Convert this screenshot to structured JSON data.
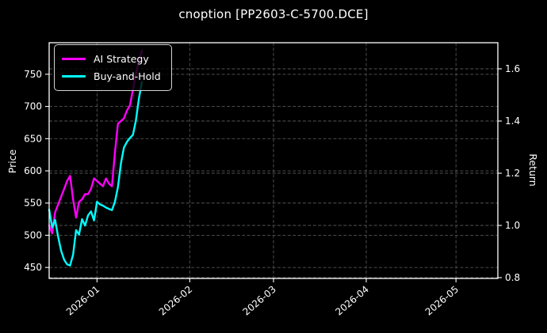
{
  "title": "cnoption [PP2603-C-5700.DCE]",
  "colors": {
    "background": "#000000",
    "text": "#ffffff",
    "spine": "#ffffff",
    "grid": "#545454",
    "ai_strategy": "#ff00ff",
    "buy_and_hold": "#00ffff"
  },
  "chart_data": {
    "type": "line",
    "title": "cnoption [PP2603-C-5700.DCE]",
    "grid": true,
    "legend": {
      "position": "upper-left",
      "entries": [
        {
          "label": "AI Strategy",
          "color": "#ff00ff"
        },
        {
          "label": "Buy-and-Hold",
          "color": "#00ffff"
        }
      ]
    },
    "x_axis": {
      "label": "",
      "range": [
        "2025-12-16",
        "2026-05-15"
      ],
      "tick_rotation_deg": -40,
      "ticks": [
        {
          "label": "2026-01",
          "date": "2026-01-01"
        },
        {
          "label": "2026-02",
          "date": "2026-02-01"
        },
        {
          "label": "2026-03",
          "date": "2026-03-01"
        },
        {
          "label": "2026-04",
          "date": "2026-04-01"
        },
        {
          "label": "2026-05",
          "date": "2026-05-01"
        }
      ]
    },
    "y_left": {
      "label": "Price",
      "range": [
        433,
        799
      ],
      "ticks": [
        {
          "label": "450",
          "value": 450
        },
        {
          "label": "500",
          "value": 500
        },
        {
          "label": "550",
          "value": 550
        },
        {
          "label": "600",
          "value": 600
        },
        {
          "label": "650",
          "value": 650
        },
        {
          "label": "700",
          "value": 700
        },
        {
          "label": "750",
          "value": 750
        }
      ]
    },
    "y_right": {
      "label": "Return",
      "range": [
        0.797,
        1.7
      ],
      "ticks": [
        {
          "label": "0.8",
          "value": 0.8
        },
        {
          "label": "1.0",
          "value": 1.0
        },
        {
          "label": "1.2",
          "value": 1.2
        },
        {
          "label": "1.4",
          "value": 1.4
        },
        {
          "label": "1.6",
          "value": 1.6
        }
      ]
    },
    "dates": [
      "2025-12-16",
      "2025-12-17",
      "2025-12-18",
      "2025-12-19",
      "2025-12-20",
      "2025-12-21",
      "2025-12-22",
      "2025-12-23",
      "2025-12-24",
      "2025-12-25",
      "2025-12-26",
      "2025-12-27",
      "2025-12-28",
      "2025-12-29",
      "2025-12-30",
      "2025-12-31",
      "2026-01-01",
      "2026-01-02",
      "2026-01-03",
      "2026-01-04",
      "2026-01-05",
      "2026-01-06",
      "2026-01-07",
      "2026-01-08",
      "2026-01-09",
      "2026-01-10",
      "2026-01-11",
      "2026-01-12",
      "2026-01-13",
      "2026-01-14",
      "2026-01-15",
      "2026-01-16"
    ],
    "series": [
      {
        "name": "AI Strategy",
        "axis": "right",
        "color": "#ff00ff",
        "values": [
          1.0,
          0.97,
          1.05,
          1.08,
          1.11,
          1.14,
          1.17,
          1.19,
          1.1,
          1.03,
          1.09,
          1.1,
          1.12,
          1.12,
          1.14,
          1.18,
          1.17,
          1.16,
          1.15,
          1.18,
          1.16,
          1.15,
          1.28,
          1.39,
          1.4,
          1.41,
          1.44,
          1.46,
          1.52,
          1.58,
          1.63,
          1.67
        ]
      },
      {
        "name": "Buy-and-Hold",
        "axis": "left",
        "color": "#00ffff",
        "values": [
          540,
          512,
          524,
          498,
          476,
          462,
          455,
          453,
          470,
          508,
          501,
          525,
          515,
          531,
          537,
          523,
          552,
          548,
          546,
          543,
          541,
          539,
          552,
          575,
          612,
          636,
          645,
          651,
          656,
          678,
          712,
          738
        ]
      }
    ]
  }
}
